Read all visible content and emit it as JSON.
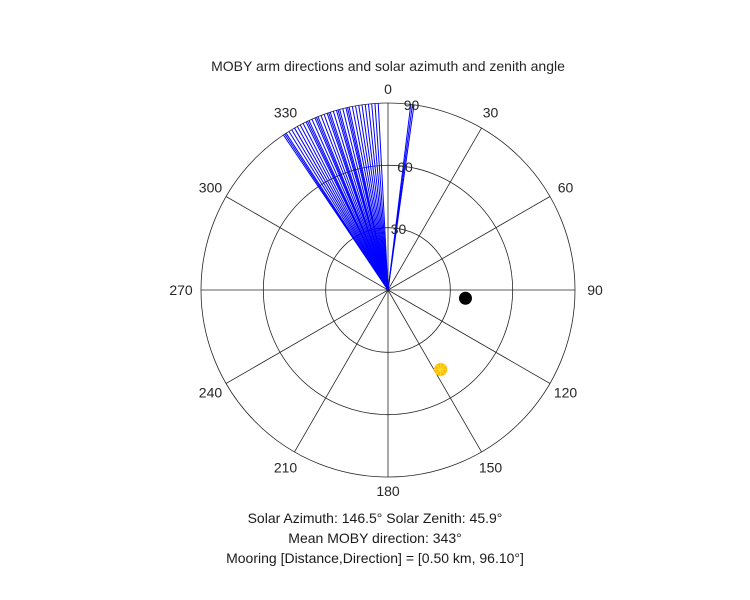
{
  "chart_data": {
    "type": "scatter",
    "projection": "polar",
    "title": "MOBY arm directions and solar azimuth and zenith angle",
    "theta_zero": "top",
    "theta_direction": "clockwise",
    "theta_ticks": [
      0,
      30,
      60,
      90,
      120,
      150,
      180,
      210,
      240,
      270,
      300,
      330
    ],
    "r_ticks": [
      30,
      60,
      90
    ],
    "r_lim": [
      0,
      90
    ],
    "grid": true,
    "arm_directions": {
      "color": "#0000ff",
      "length": 90,
      "theta_deg": [
        326,
        326.5,
        327,
        328,
        329,
        330,
        331,
        332,
        333,
        334,
        334.5,
        335,
        336,
        337,
        337.5,
        338,
        339,
        340,
        341,
        341.5,
        342,
        343,
        344,
        344.5,
        345,
        346,
        347,
        347.5,
        348,
        349,
        350,
        351,
        352,
        353,
        354,
        355,
        356,
        357,
        7,
        7.5,
        8
      ]
    },
    "solar_position": {
      "theta_deg": 146.5,
      "r": 45.9,
      "color": "#ffbf00",
      "marker": "sun"
    },
    "mooring_position": {
      "theta_deg": 96.1,
      "r": 37.5,
      "color": "#000000",
      "marker": "filled-circle"
    }
  },
  "captions": {
    "solar_line": "Solar Azimuth: 146.5°    Solar Zenith: 45.9°",
    "mean_line": "Mean MOBY direction: 343°",
    "mooring_line": "Mooring [Distance,Direction] = [0.50 km, 96.10°]"
  }
}
